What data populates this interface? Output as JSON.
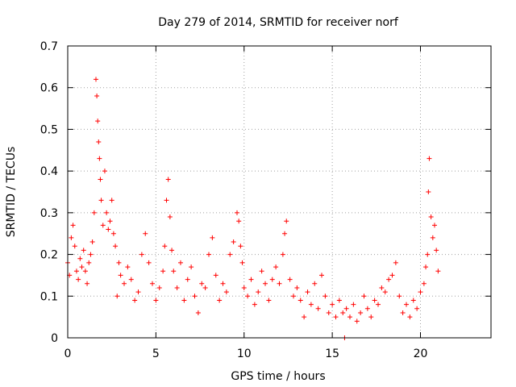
{
  "chart_data": {
    "type": "scatter",
    "title": "Day 279 of 2014, SRMTID for receiver norf",
    "xlabel": "GPS time / hours",
    "ylabel": "SRMTID / TECUs",
    "xlim": [
      0,
      24
    ],
    "ylim": [
      0,
      0.7
    ],
    "xticks": [
      0,
      5,
      10,
      15,
      20
    ],
    "yticks": [
      0,
      0.1,
      0.2,
      0.3,
      0.4,
      0.5,
      0.6,
      0.7
    ],
    "grid": true,
    "marker": "+",
    "color": "#ff0000",
    "series": [
      {
        "name": "SRMTID",
        "x": [
          0.0,
          0.1,
          0.2,
          0.3,
          0.4,
          0.5,
          0.6,
          0.7,
          0.8,
          0.9,
          1.0,
          1.1,
          1.2,
          1.3,
          1.4,
          1.5,
          1.6,
          1.65,
          1.7,
          1.75,
          1.8,
          1.85,
          1.9,
          2.0,
          2.1,
          2.2,
          2.3,
          2.4,
          2.5,
          2.6,
          2.7,
          2.8,
          2.9,
          3.0,
          3.2,
          3.4,
          3.6,
          3.8,
          4.0,
          4.2,
          4.4,
          4.6,
          4.8,
          5.0,
          5.2,
          5.4,
          5.5,
          5.6,
          5.7,
          5.8,
          5.9,
          6.0,
          6.2,
          6.4,
          6.6,
          6.8,
          7.0,
          7.2,
          7.4,
          7.6,
          7.8,
          8.0,
          8.2,
          8.4,
          8.6,
          8.8,
          9.0,
          9.2,
          9.4,
          9.6,
          9.7,
          9.8,
          9.9,
          10.0,
          10.2,
          10.4,
          10.6,
          10.8,
          11.0,
          11.2,
          11.4,
          11.6,
          11.8,
          12.0,
          12.2,
          12.3,
          12.4,
          12.6,
          12.8,
          13.0,
          13.2,
          13.4,
          13.6,
          13.8,
          14.0,
          14.2,
          14.4,
          14.6,
          14.8,
          15.0,
          15.2,
          15.4,
          15.6,
          15.7,
          15.8,
          16.0,
          16.2,
          16.4,
          16.6,
          16.8,
          17.0,
          17.2,
          17.4,
          17.6,
          17.8,
          18.0,
          18.2,
          18.4,
          18.6,
          18.8,
          19.0,
          19.2,
          19.4,
          19.6,
          19.8,
          20.0,
          20.2,
          20.3,
          20.4,
          20.45,
          20.5,
          20.6,
          20.7,
          20.8,
          20.9,
          21.0
        ],
        "y": [
          0.18,
          0.15,
          0.24,
          0.27,
          0.22,
          0.16,
          0.14,
          0.19,
          0.17,
          0.21,
          0.16,
          0.13,
          0.18,
          0.2,
          0.23,
          0.3,
          0.62,
          0.58,
          0.52,
          0.47,
          0.43,
          0.38,
          0.33,
          0.27,
          0.4,
          0.3,
          0.26,
          0.28,
          0.33,
          0.25,
          0.22,
          0.1,
          0.18,
          0.15,
          0.13,
          0.17,
          0.14,
          0.09,
          0.11,
          0.2,
          0.25,
          0.18,
          0.13,
          0.09,
          0.12,
          0.16,
          0.22,
          0.33,
          0.38,
          0.29,
          0.21,
          0.16,
          0.12,
          0.18,
          0.09,
          0.14,
          0.17,
          0.1,
          0.06,
          0.13,
          0.12,
          0.2,
          0.24,
          0.15,
          0.09,
          0.13,
          0.11,
          0.2,
          0.23,
          0.3,
          0.28,
          0.22,
          0.18,
          0.12,
          0.1,
          0.14,
          0.08,
          0.11,
          0.16,
          0.13,
          0.09,
          0.14,
          0.17,
          0.13,
          0.2,
          0.25,
          0.28,
          0.14,
          0.1,
          0.12,
          0.09,
          0.05,
          0.11,
          0.08,
          0.13,
          0.07,
          0.15,
          0.1,
          0.06,
          0.08,
          0.05,
          0.09,
          0.06,
          0.0,
          0.07,
          0.05,
          0.08,
          0.04,
          0.06,
          0.1,
          0.07,
          0.05,
          0.09,
          0.08,
          0.12,
          0.11,
          0.14,
          0.15,
          0.18,
          0.1,
          0.06,
          0.08,
          0.05,
          0.09,
          0.07,
          0.11,
          0.13,
          0.17,
          0.2,
          0.35,
          0.43,
          0.29,
          0.24,
          0.27,
          0.21,
          0.16
        ]
      }
    ]
  }
}
